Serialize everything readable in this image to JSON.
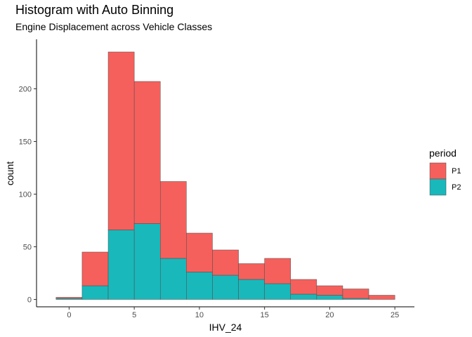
{
  "chart_data": {
    "type": "bar",
    "title": "Histogram with Auto Binning",
    "subtitle": "Engine Displacement across Vehicle Classes",
    "xlabel": "IHV_24",
    "ylabel": "count",
    "stacked": true,
    "bin_width": 2,
    "bins": [
      [
        -1,
        1
      ],
      [
        1,
        3
      ],
      [
        3,
        5
      ],
      [
        5,
        7
      ],
      [
        7,
        9
      ],
      [
        9,
        11
      ],
      [
        11,
        13
      ],
      [
        13,
        15
      ],
      [
        15,
        17
      ],
      [
        17,
        19
      ],
      [
        19,
        21
      ],
      [
        21,
        23
      ],
      [
        23,
        25
      ]
    ],
    "series": [
      {
        "name": "P2",
        "color": "#19b8bb",
        "values": [
          1,
          13,
          66,
          72,
          39,
          26,
          23,
          19,
          15,
          5,
          4,
          1,
          0
        ]
      },
      {
        "name": "P1",
        "color": "#f5605c",
        "values": [
          1,
          32,
          169,
          135,
          73,
          37,
          24,
          15,
          24,
          14,
          9,
          9,
          4
        ]
      }
    ],
    "xticks": [
      0,
      5,
      10,
      15,
      20,
      25
    ],
    "yticks": [
      0,
      50,
      100,
      150,
      200
    ],
    "xlim": [
      -2.5,
      26.5
    ],
    "ylim": [
      -7,
      247
    ],
    "legend": {
      "title": "period",
      "placement": "right",
      "entries": [
        "P1",
        "P2"
      ]
    },
    "grid": false
  },
  "colors": {
    "bar_outline": "#4d4d4d",
    "axis": "#000000",
    "tick_label": "#4d4d4d"
  }
}
